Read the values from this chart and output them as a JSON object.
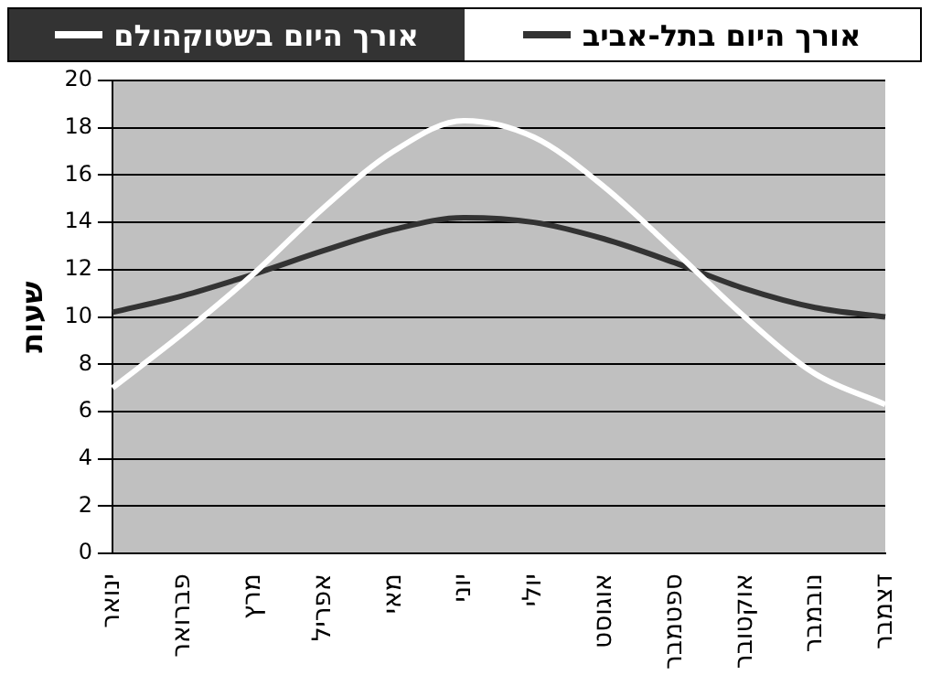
{
  "chart_data": {
    "type": "line",
    "ylabel": "שעות",
    "categories": [
      "ינואר",
      "פברואר",
      "מרץ",
      "אפריל",
      "מאי",
      "יוני",
      "יולי",
      "אוגוסט",
      "ספטמבר",
      "אוקטובר",
      "נובמבר",
      "דצמבר"
    ],
    "series": [
      {
        "name": "אורך היום בשטוקהולם",
        "color": "#ffffff",
        "values": [
          7.0,
          9.3,
          11.8,
          14.6,
          17.0,
          18.3,
          17.6,
          15.5,
          12.8,
          10.0,
          7.6,
          6.3
        ]
      },
      {
        "name": "אורך היום בתל-אביב",
        "color": "#333333",
        "values": [
          10.2,
          10.9,
          11.8,
          12.8,
          13.7,
          14.2,
          14.0,
          13.3,
          12.3,
          11.2,
          10.4,
          10.0
        ]
      }
    ],
    "ylim": [
      0,
      20
    ],
    "yticks": [
      0,
      2,
      4,
      6,
      8,
      10,
      12,
      14,
      16,
      18,
      20
    ],
    "grid": "y",
    "legend": "top",
    "marker": "none",
    "line_style": "solid"
  }
}
